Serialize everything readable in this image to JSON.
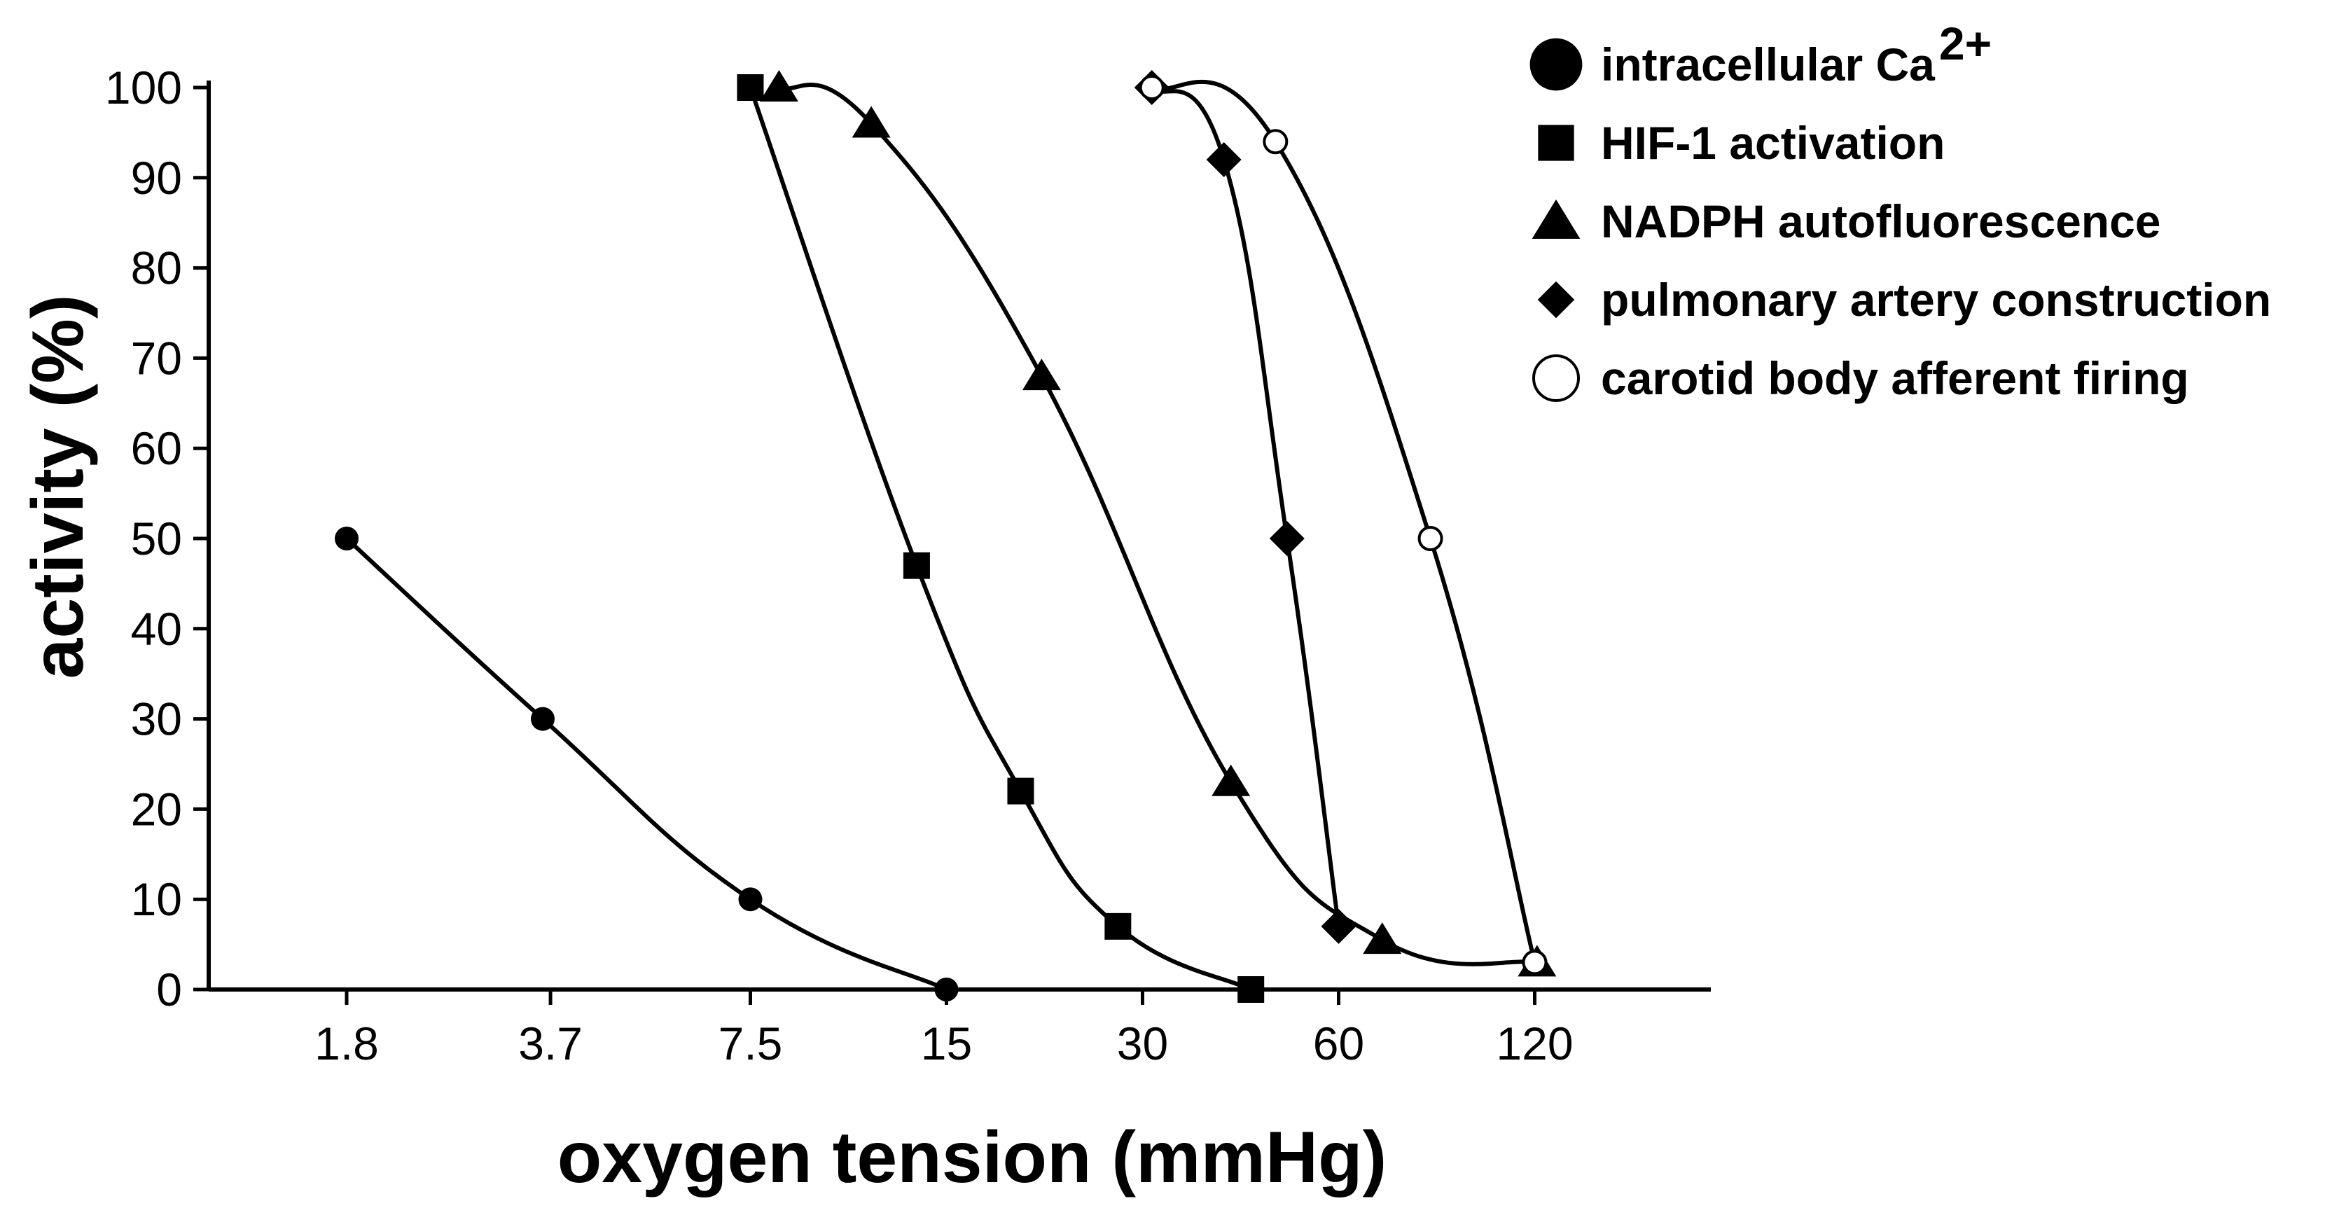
{
  "chart_data": {
    "type": "line",
    "title": "",
    "xlabel": "oxygen tension (mmHg)",
    "ylabel": "activity (%)",
    "x_scale": "log2",
    "xlim": [
      1.8,
      200
    ],
    "ylim": [
      0,
      100
    ],
    "x_ticks": [
      "1.8",
      "3.7",
      "7.5",
      "15",
      "30",
      "60",
      "120"
    ],
    "x_tick_values": [
      1.8,
      3.7,
      7.5,
      15,
      30,
      60,
      120
    ],
    "y_ticks": [
      "0",
      "10",
      "20",
      "30",
      "40",
      "50",
      "60",
      "70",
      "80",
      "90",
      "100"
    ],
    "y_tick_values": [
      0,
      10,
      20,
      30,
      40,
      50,
      60,
      70,
      80,
      90,
      100
    ],
    "grid": false,
    "legend_position": "top-right",
    "series": [
      {
        "name": "intracellular Ca",
        "name_sup": "2+",
        "marker": "circle-filled",
        "color": "#000000",
        "points": [
          [
            1.8,
            50
          ],
          [
            3.6,
            30
          ],
          [
            7.5,
            10
          ],
          [
            15,
            0
          ]
        ]
      },
      {
        "name": "HIF-1 activation",
        "marker": "square",
        "color": "#000000",
        "points": [
          [
            7.5,
            100
          ],
          [
            13.5,
            47
          ],
          [
            19.5,
            22
          ],
          [
            27.5,
            7
          ],
          [
            44,
            0
          ]
        ]
      },
      {
        "name": "NADPH autofluorescence",
        "marker": "triangle",
        "color": "#000000",
        "points": [
          [
            8.3,
            100
          ],
          [
            11.5,
            96
          ],
          [
            21,
            68
          ],
          [
            41,
            23
          ],
          [
            70,
            5.5
          ],
          [
            121,
            3
          ]
        ]
      },
      {
        "name": "pulmonary artery construction",
        "marker": "diamond",
        "color": "#000000",
        "points": [
          [
            31,
            100
          ],
          [
            40,
            92
          ],
          [
            50,
            50
          ],
          [
            60,
            7
          ]
        ]
      },
      {
        "name": "carotid body afferent firing",
        "marker": "circle-open",
        "color": "#000000",
        "points": [
          [
            31,
            100
          ],
          [
            48,
            94
          ],
          [
            83,
            50
          ],
          [
            120,
            3
          ]
        ]
      }
    ]
  }
}
